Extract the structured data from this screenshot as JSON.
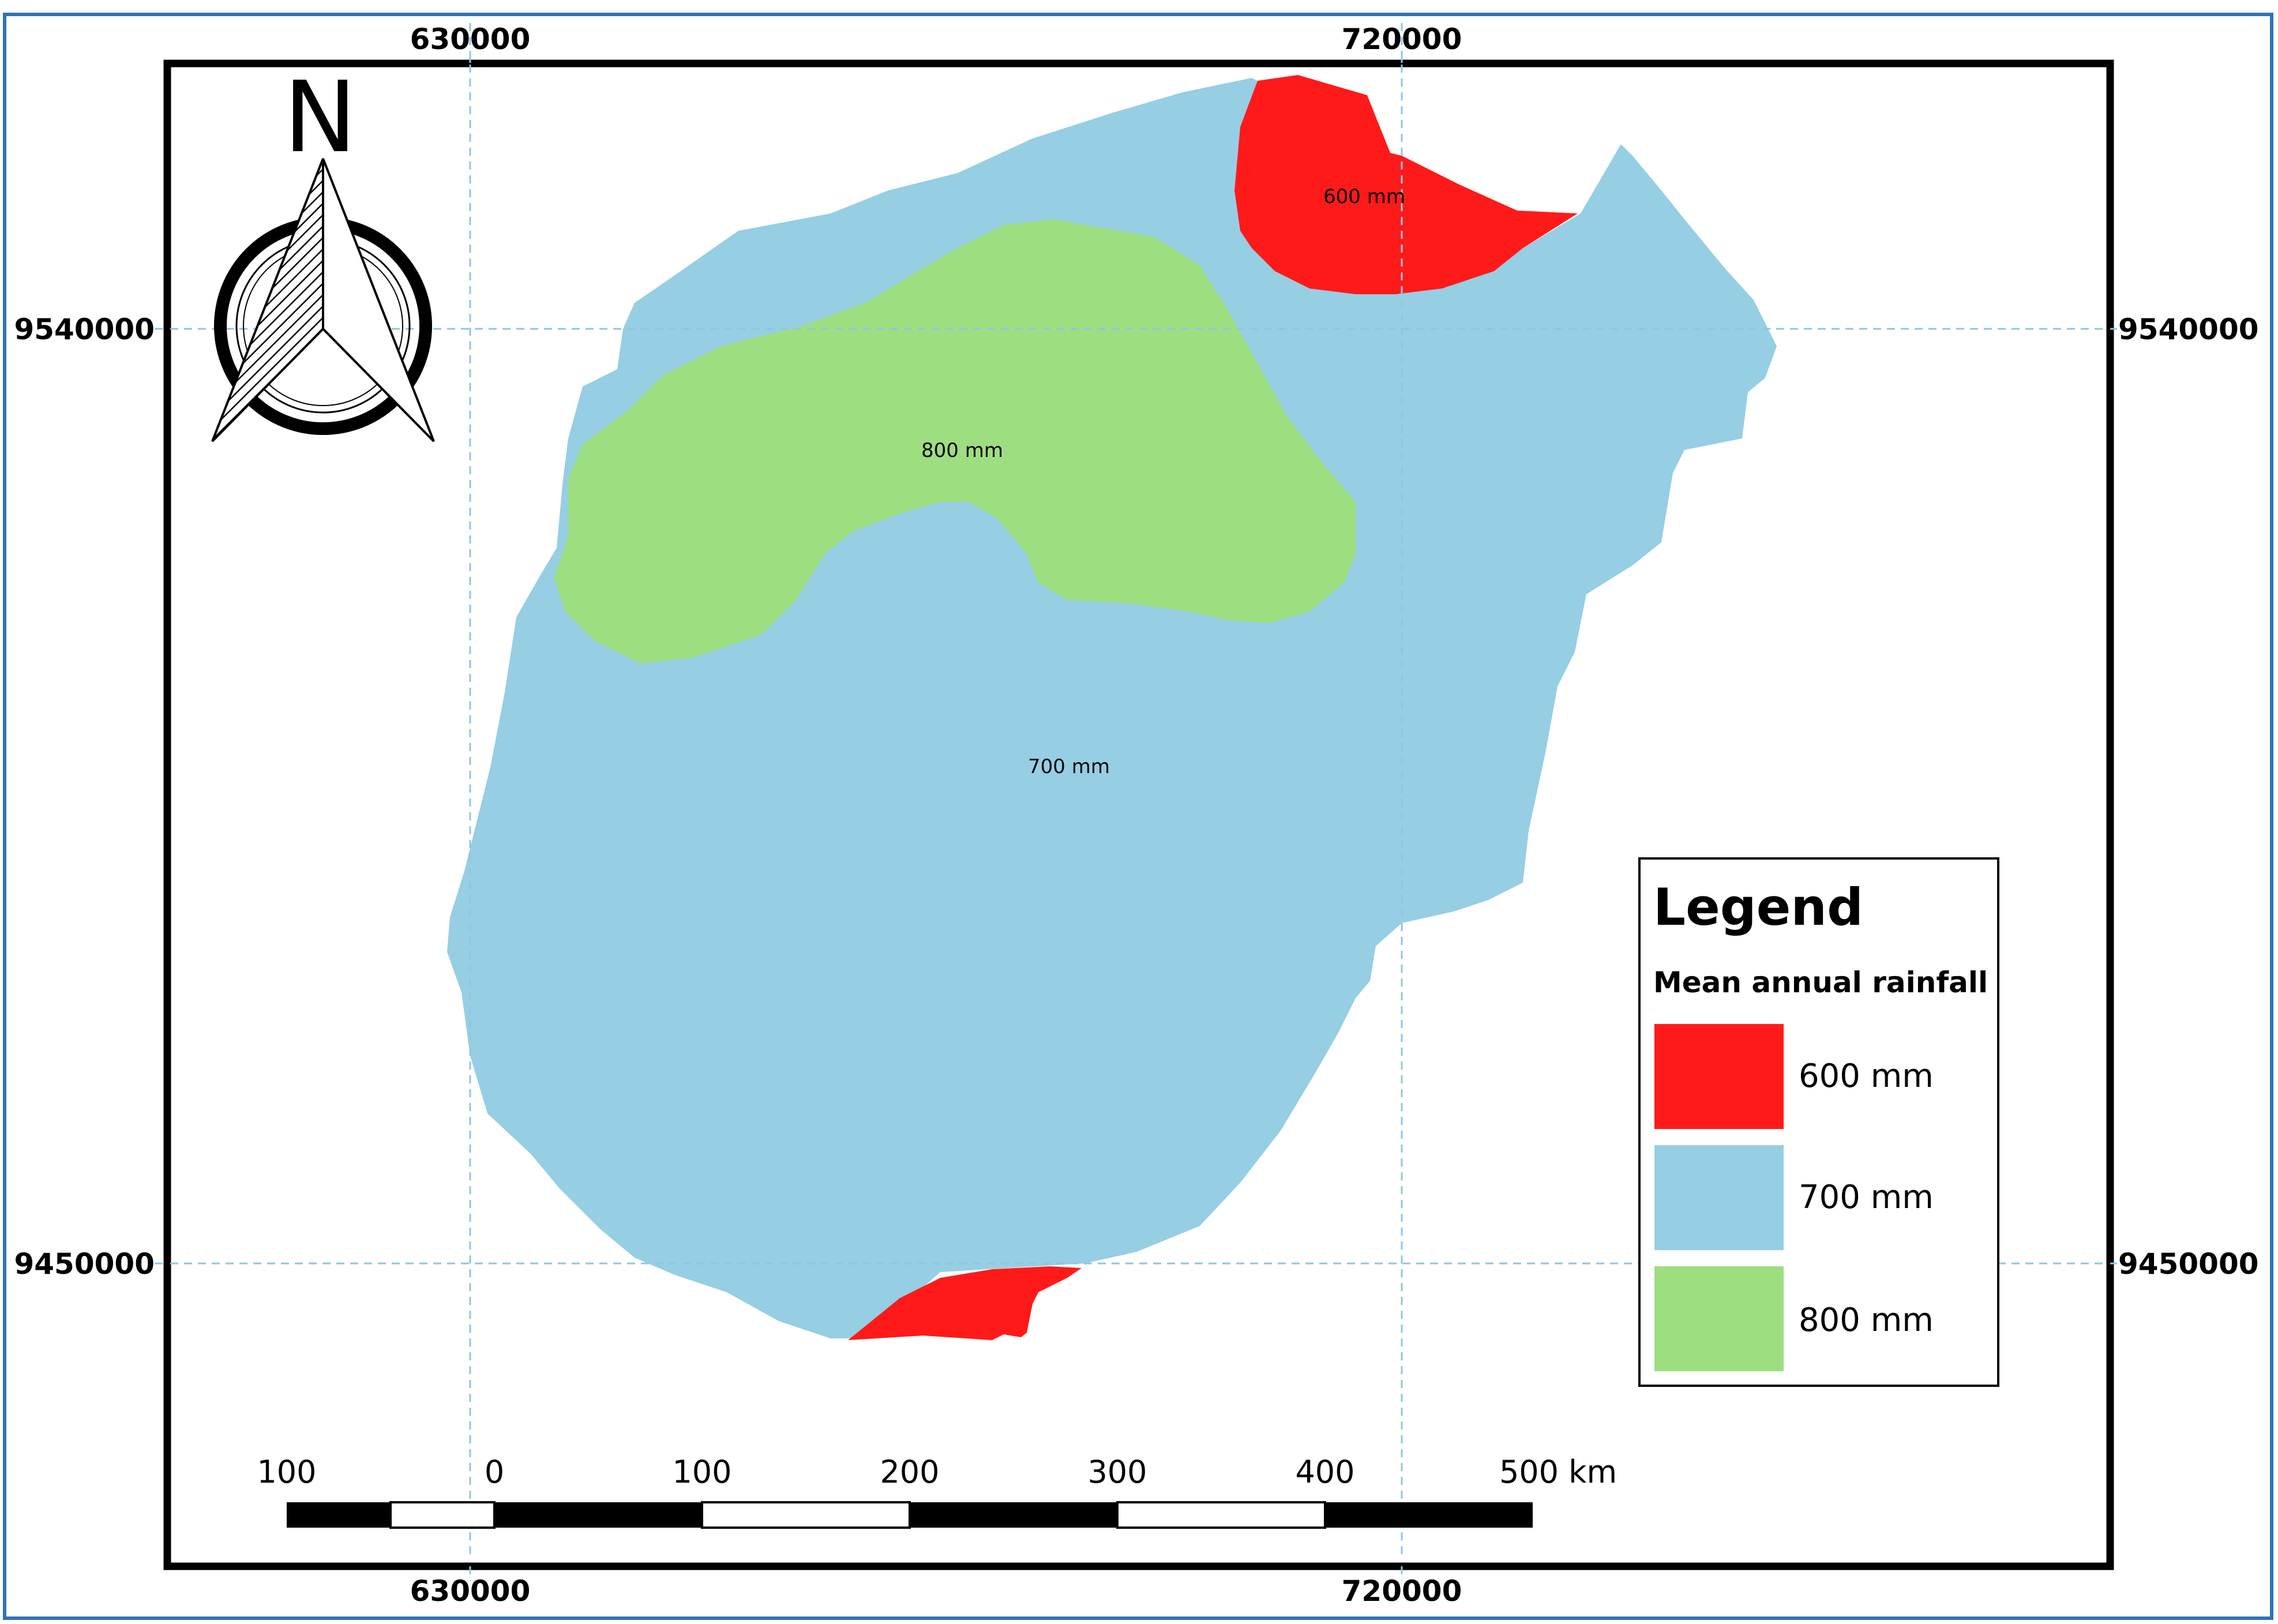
{
  "grid": {
    "top_labels": [
      "630000",
      "720000"
    ],
    "bottom_labels": [
      "630000",
      "720000"
    ],
    "left_labels": [
      "9540000",
      "9450000"
    ],
    "right_labels": [
      "9540000",
      "9450000"
    ]
  },
  "north_arrow": {
    "label": "N",
    "icon": "north-arrow-icon"
  },
  "zones": {
    "z600_north": "600 mm",
    "z800": "800 mm",
    "z700": "700 mm"
  },
  "legend": {
    "title": "Legend",
    "subtitle": "Mean annual rainfall",
    "items": [
      {
        "label": "600 mm",
        "color": "#FF1A1A"
      },
      {
        "label": "700 mm",
        "color": "#96CEE3"
      },
      {
        "label": "800 mm",
        "color": "#9DDF80"
      }
    ]
  },
  "scalebar": {
    "labels": [
      "100",
      "0",
      "100",
      "200",
      "300",
      "400",
      "500 km"
    ]
  },
  "colors": {
    "frame_outer": "#2E74B5",
    "frame_inner": "#000000",
    "grid": "#8EC6E6",
    "zone_600": "#FF1A1A",
    "zone_700": "#96CEE3",
    "zone_800": "#9DDF80"
  }
}
